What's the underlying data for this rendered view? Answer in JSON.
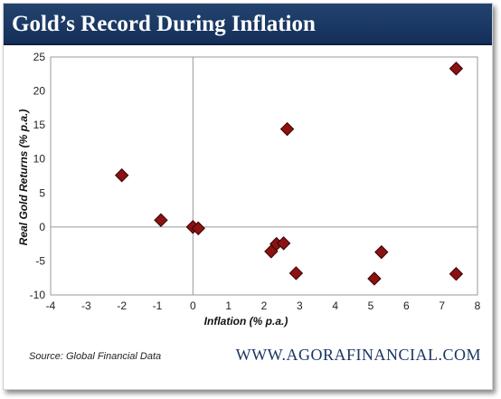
{
  "title": "Gold’s Record During Inflation",
  "source": "Source: Global Financial Data",
  "website": "WWW.AGORAFINANCIAL.COM",
  "colors": {
    "title_bar": "#1b3a66",
    "marker_fill": "#8b1212",
    "marker_stroke": "#3a0000",
    "axis": "#999999",
    "footer_site": "#1a3563"
  },
  "chart_data": {
    "type": "scatter",
    "title": "Gold’s Record During Inflation",
    "xlabel": "Inflation (% p.a.)",
    "ylabel": "Real Gold Returns (% p.a.)",
    "xlim": [
      -4,
      8
    ],
    "ylim": [
      -10,
      25
    ],
    "xticks": [
      -4,
      -3,
      -2,
      -1,
      0,
      1,
      2,
      3,
      4,
      5,
      6,
      7,
      8
    ],
    "yticks": [
      -10,
      -5,
      0,
      5,
      10,
      15,
      20,
      25
    ],
    "grid": false,
    "marker": "diamond",
    "points": [
      {
        "x": -2.0,
        "y": 7.6
      },
      {
        "x": -0.9,
        "y": 1.0
      },
      {
        "x": 0.0,
        "y": 0.0
      },
      {
        "x": 0.15,
        "y": -0.2
      },
      {
        "x": 2.2,
        "y": -3.6
      },
      {
        "x": 2.35,
        "y": -2.5
      },
      {
        "x": 2.55,
        "y": -2.4
      },
      {
        "x": 2.65,
        "y": 14.4
      },
      {
        "x": 2.9,
        "y": -6.8
      },
      {
        "x": 5.1,
        "y": -7.6
      },
      {
        "x": 5.3,
        "y": -3.7
      },
      {
        "x": 7.4,
        "y": 23.3
      },
      {
        "x": 7.4,
        "y": -6.9
      }
    ]
  }
}
